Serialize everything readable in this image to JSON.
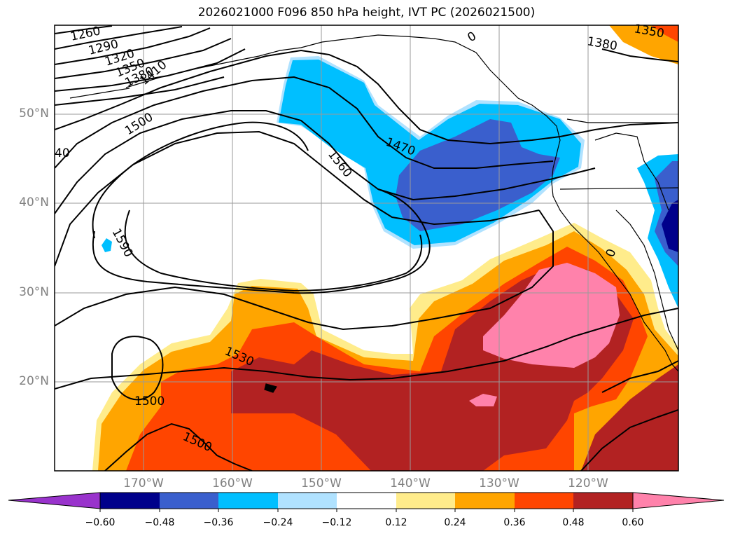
{
  "title": "2026021000 F096 850 hPa height, IVT PC (2026021500)",
  "lat_labels": [
    "50°N",
    "40°N",
    "30°N",
    "20°N"
  ],
  "lon_labels": [
    "170°W",
    "160°W",
    "150°W",
    "140°W",
    "130°W",
    "120°W"
  ],
  "contour_labels": [
    "1260",
    "1290",
    "1320",
    "1350",
    "1380",
    "1410",
    "1500",
    "40",
    "1470",
    "1560",
    "1590",
    "1530",
    "1500",
    "1500",
    "1380",
    "1350",
    "0",
    "0"
  ],
  "colorbar": {
    "ticks": [
      "−0.60",
      "−0.48",
      "−0.36",
      "−0.24",
      "−0.12",
      "0.12",
      "0.24",
      "0.36",
      "0.48",
      "0.60"
    ],
    "colors": [
      "#9933cc",
      "#00008b",
      "#3a5fcd",
      "#00bfff",
      "#b0e2ff",
      "#ffffff",
      "#ffec8b",
      "#ffa500",
      "#ff4500",
      "#b22222",
      "#ff82ab"
    ]
  }
}
